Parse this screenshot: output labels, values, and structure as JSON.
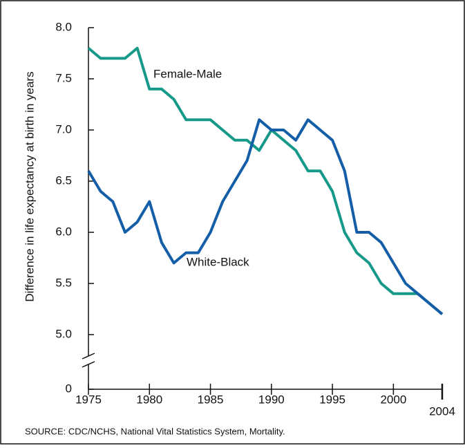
{
  "chart_data": {
    "type": "line",
    "y_label": "Difference in life expectancy at birth in years",
    "source": "SOURCE: CDC/NCHS, National Vital Statistics System, Mortality.",
    "x": [
      1975,
      1976,
      1977,
      1978,
      1979,
      1980,
      1981,
      1982,
      1983,
      1984,
      1985,
      1986,
      1987,
      1988,
      1989,
      1990,
      1991,
      1992,
      1993,
      1994,
      1995,
      1996,
      1997,
      1998,
      1999,
      2000,
      2001,
      2002,
      2003,
      2004
    ],
    "series": [
      {
        "name": "Female-Male",
        "color": "#17998a",
        "values": [
          7.8,
          7.7,
          7.7,
          7.7,
          7.8,
          7.4,
          7.4,
          7.3,
          7.1,
          7.1,
          7.1,
          7.0,
          6.9,
          6.9,
          6.8,
          7.0,
          6.9,
          6.8,
          6.6,
          6.6,
          6.4,
          6.0,
          5.8,
          5.7,
          5.5,
          5.4,
          5.4,
          5.4,
          5.3,
          5.2
        ]
      },
      {
        "name": "White-Black",
        "color": "#145ea8",
        "values": [
          6.6,
          6.4,
          6.3,
          6.0,
          6.1,
          6.3,
          5.9,
          5.7,
          5.8,
          5.8,
          6.0,
          6.3,
          6.5,
          6.7,
          7.1,
          7.0,
          7.0,
          6.9,
          7.1,
          7.0,
          6.9,
          6.6,
          6.0,
          6.0,
          5.9,
          5.7,
          5.5,
          5.4,
          5.3,
          5.2
        ]
      }
    ],
    "xlim": [
      1975,
      2004
    ],
    "xticks": [
      1975,
      1980,
      1985,
      1990,
      1995,
      2000,
      2004
    ],
    "ylim": [
      5,
      8
    ],
    "yticks": [
      0,
      {
        "value": 5,
        "label": "5.0"
      },
      5.5,
      {
        "value": 6,
        "label": "6.0"
      },
      6.5,
      {
        "value": 7,
        "label": "7.0"
      },
      7.5,
      {
        "value": 8,
        "label": "8.0"
      }
    ],
    "axis_break": true
  }
}
